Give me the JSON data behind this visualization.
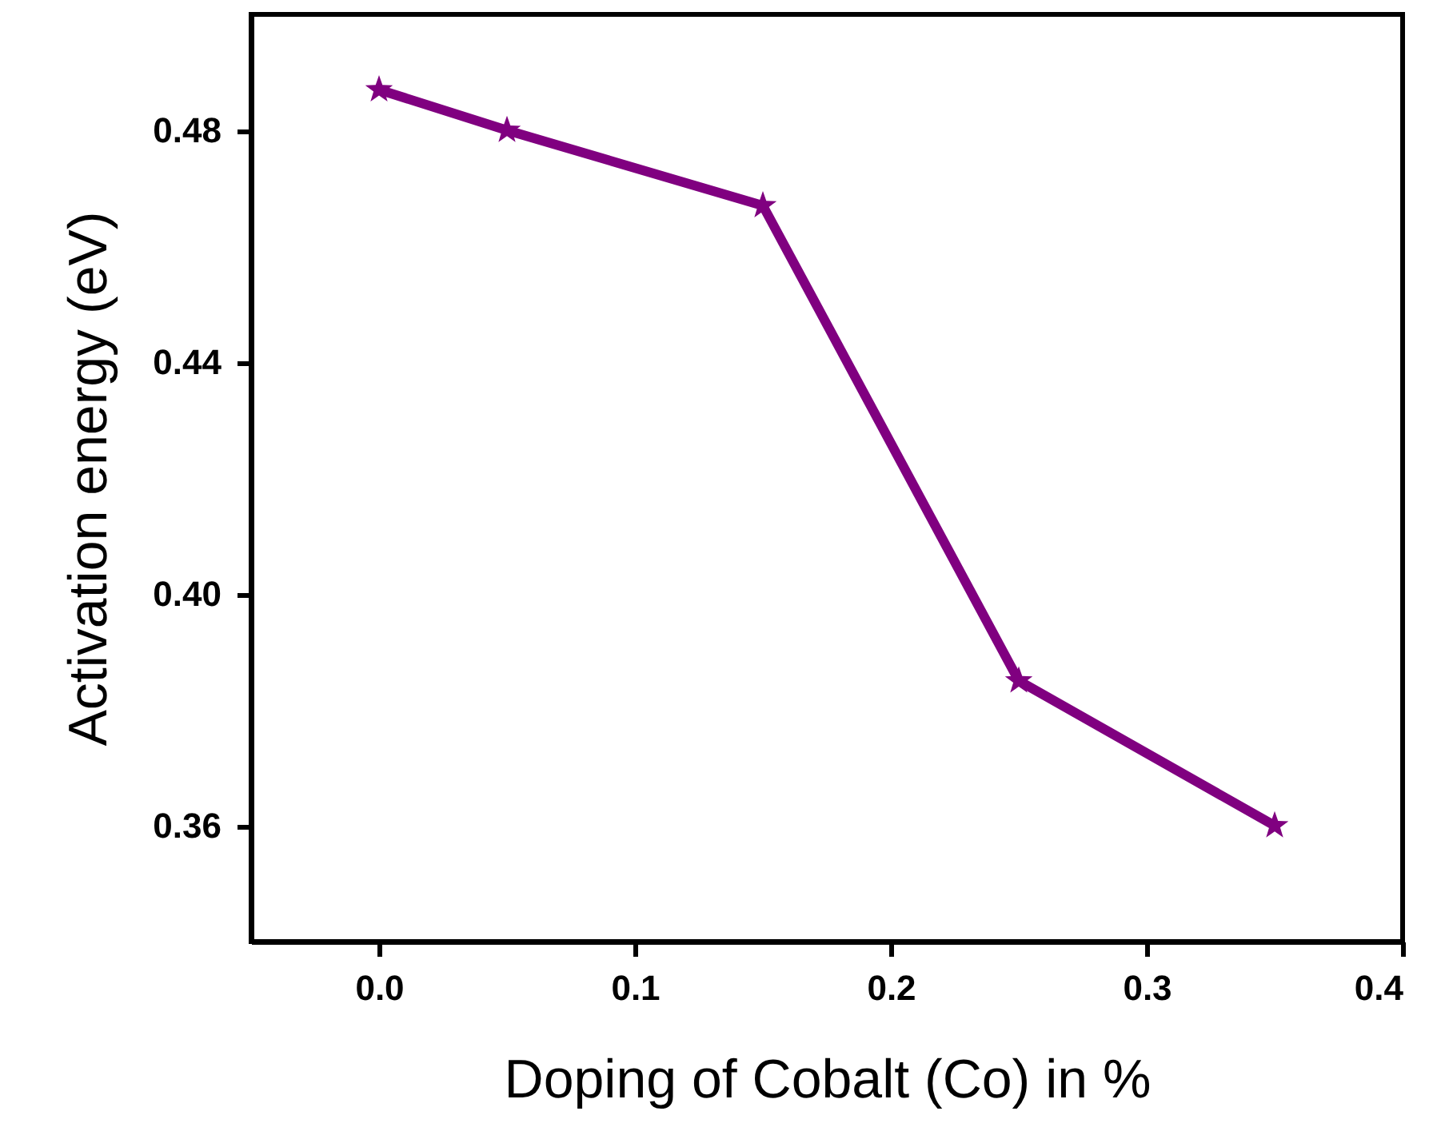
{
  "chart_data": {
    "type": "line",
    "xlabel": "Doping of Cobalt (Co) in %",
    "ylabel": "Activation energy (eV)",
    "x": [
      0.0,
      0.05,
      0.15,
      0.25,
      0.35
    ],
    "series": [
      {
        "color": "#800080",
        "values": [
          0.487,
          0.48,
          0.467,
          0.385,
          0.36
        ]
      }
    ],
    "xlim": [
      -0.05,
      0.4
    ],
    "ylim": [
      0.34,
      0.5
    ],
    "xticks": [
      {
        "value": 0.0,
        "label": "0.0"
      },
      0.1,
      0.2,
      0.3,
      0.4
    ],
    "yticks": [
      0.36,
      {
        "value": 0.4,
        "label": "0.40"
      },
      0.44,
      0.48
    ],
    "marker": "star",
    "line_style": "solid",
    "grid": false
  }
}
